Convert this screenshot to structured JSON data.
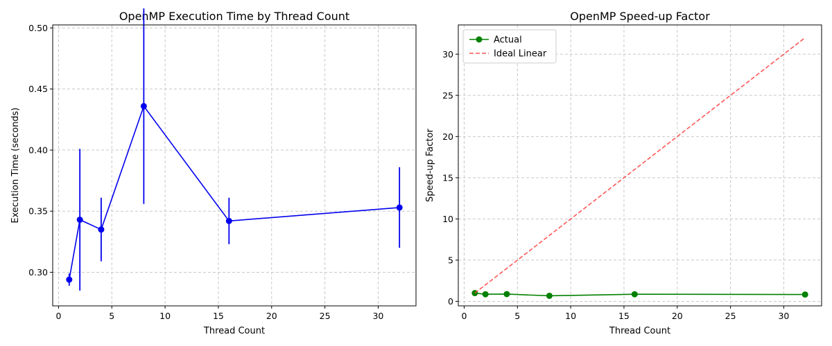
{
  "chart_data": [
    {
      "type": "line",
      "title": "OpenMP Execution Time by Thread Count",
      "xlabel": "Thread Count",
      "ylabel": "Execution Time (seconds)",
      "xlim": [
        -0.55,
        33.55
      ],
      "ylim": [
        0.2725,
        0.5025
      ],
      "xticks": [
        0,
        5,
        10,
        15,
        20,
        25,
        30
      ],
      "yticks": [
        0.3,
        0.35,
        0.4,
        0.45,
        0.5
      ],
      "ytick_labels": [
        "0.30",
        "0.35",
        "0.40",
        "0.45",
        "0.50"
      ],
      "grid": true,
      "color": "#0000ee",
      "series": [
        {
          "name": "Execution Time",
          "x": [
            1,
            2,
            4,
            8,
            16,
            32
          ],
          "y": [
            0.294,
            0.343,
            0.335,
            0.436,
            0.342,
            0.353
          ],
          "yerr": [
            0.005,
            0.058,
            0.026,
            0.08,
            0.019,
            0.033
          ]
        }
      ]
    },
    {
      "type": "line",
      "title": "OpenMP Speed-up Factor",
      "xlabel": "Thread Count",
      "ylabel": "Speed-up Factor",
      "xlim": [
        -0.55,
        33.55
      ],
      "ylim": [
        -0.55,
        33.55
      ],
      "xticks": [
        0,
        5,
        10,
        15,
        20,
        25,
        30
      ],
      "yticks": [
        0,
        5,
        10,
        15,
        20,
        25,
        30
      ],
      "grid": true,
      "legend_position": "top-left",
      "series": [
        {
          "name": "Actual",
          "x": [
            1,
            2,
            4,
            8,
            16,
            32
          ],
          "y": [
            1.0,
            0.86,
            0.88,
            0.67,
            0.86,
            0.83
          ],
          "color": "#008000",
          "style": "solid-marker"
        },
        {
          "name": "Ideal Linear",
          "x": [
            1,
            32
          ],
          "y": [
            1,
            32
          ],
          "color": "#ff4444",
          "style": "dashed"
        }
      ]
    }
  ]
}
